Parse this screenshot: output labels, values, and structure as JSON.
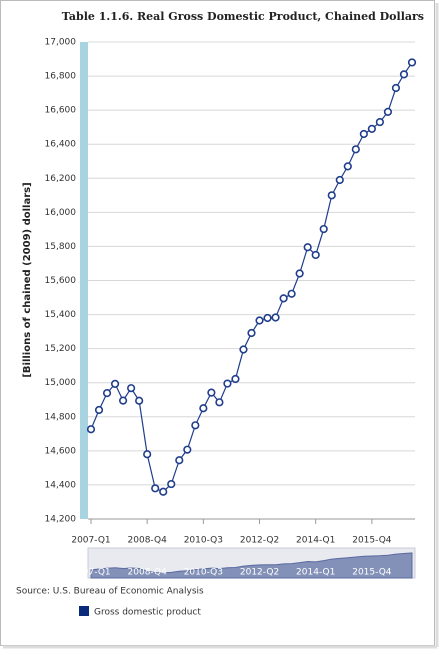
{
  "chart_data": {
    "type": "line",
    "title": "Table 1.1.6. Real Gross Domestic Product, Chained Dollars",
    "y_label": "[Billions of chained (2009) dollars]",
    "source": "Source: U.S. Bureau of Economic Analysis",
    "categories": [
      "2007-Q1",
      null,
      null,
      null,
      null,
      null,
      null,
      "2008-Q4",
      null,
      null,
      null,
      null,
      null,
      null,
      "2010-Q3",
      null,
      null,
      null,
      null,
      null,
      null,
      "2012-Q2",
      null,
      null,
      null,
      null,
      null,
      null,
      "2014-Q1",
      null,
      null,
      null,
      null,
      null,
      null,
      "2015-Q4",
      null,
      null,
      null,
      null,
      null
    ],
    "series": [
      {
        "name": "Gross domestic product",
        "color": "#1f3d8c",
        "legend_color": "#0b2a7a",
        "values": [
          14727,
          14840,
          14939,
          14993,
          14895,
          14968,
          14894,
          14580,
          14380,
          14360,
          14405,
          14545,
          14607,
          14750,
          14850,
          14942,
          14885,
          14995,
          15022,
          15195,
          15292,
          15365,
          15380,
          15383,
          15495,
          15522,
          15641,
          15795,
          15750,
          15902,
          16100,
          16190,
          16270,
          16370,
          16460,
          16490,
          16530,
          16590,
          16730,
          16810,
          16880
        ]
      }
    ],
    "ylim": [
      14200,
      17000
    ],
    "yticks": [
      {
        "value": 14200,
        "label": "14,200"
      },
      {
        "value": 14400,
        "label": "14,400"
      },
      {
        "value": 14600,
        "label": "14,600"
      },
      {
        "value": 14800,
        "label": "14,800"
      },
      {
        "value": 15000,
        "label": "15,000"
      },
      {
        "value": 15200,
        "label": "15,200"
      },
      {
        "value": 15400,
        "label": "15,400"
      },
      {
        "value": 15600,
        "label": "15,600"
      },
      {
        "value": 15800,
        "label": "15,800"
      },
      {
        "value": 16000,
        "label": "16,000"
      },
      {
        "value": 16200,
        "label": "16,200"
      },
      {
        "value": 16400,
        "label": "16,400"
      },
      {
        "value": 16600,
        "label": "16,600"
      },
      {
        "value": 16800,
        "label": "16,800"
      },
      {
        "value": 17000,
        "label": "17,000"
      }
    ],
    "grid": true
  }
}
